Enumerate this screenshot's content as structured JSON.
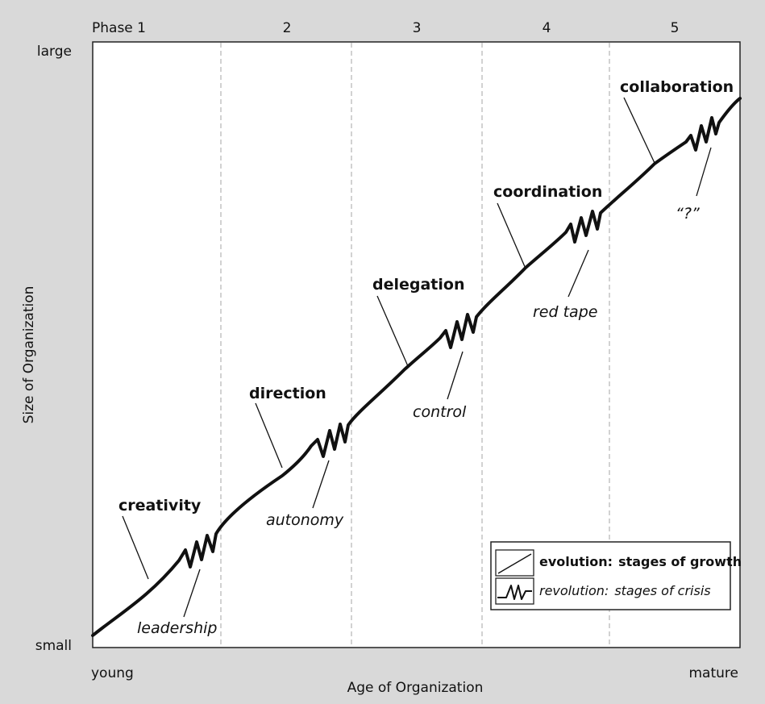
{
  "phases": [
    "Phase 1",
    "2",
    "3",
    "4",
    "5"
  ],
  "axes": {
    "y_top": "large",
    "y_bottom": "small",
    "y_title": "Size of Organization",
    "x_left": "young",
    "x_right": "mature",
    "x_title": "Age of Organization"
  },
  "evolution_labels": [
    "creativity",
    "direction",
    "delegation",
    "coordination",
    "collaboration"
  ],
  "crisis_labels": [
    "leadership",
    "autonomy",
    "control",
    "red tape",
    "“?”"
  ],
  "legend": {
    "evolution_term": "evolution:",
    "evolution_desc": "stages of growth",
    "revolution_term": "revolution:",
    "revolution_desc": "stages of crisis"
  },
  "colors": {
    "background": "#d9d9d9",
    "plot": "#ffffff",
    "curve": "#111111",
    "phase_divider": "#b5b5b5"
  }
}
